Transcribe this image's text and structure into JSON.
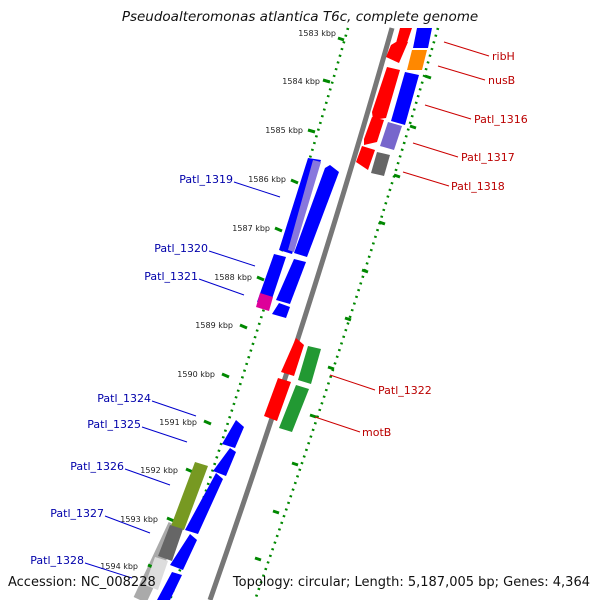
{
  "title": "Pseudoalteromonas atlantica T6c, complete genome",
  "accession_text": "Accession: NC_008228",
  "topology_text": "Topology: circular; Length: 5,187,005 bp; Genes: 4,364",
  "colors": {
    "forward_gene": "#0000ff",
    "reverse_gene": "#ff0000",
    "backbone": "#777777",
    "ticks_green": "#008800",
    "label_blue": "#0000aa",
    "label_red": "#bb0000",
    "orange": "#ff8800",
    "purple": "#7766cc",
    "olive": "#779922",
    "green_gene": "#229933",
    "magenta": "#dd0099",
    "gray_gene": "#666666"
  },
  "kbp_ticks": [
    "1583 kbp",
    "1584 kbp",
    "1585 kbp",
    "1586 kbp",
    "1587 kbp",
    "1588 kbp",
    "1589 kbp",
    "1590 kbp",
    "1591 kbp",
    "1592 kbp",
    "1593 kbp",
    "1594 kbp"
  ],
  "right_labels": [
    "ribH",
    "nusB",
    "Patl_1316",
    "Patl_1317",
    "Patl_1318",
    "Patl_1322",
    "motB"
  ],
  "left_labels": [
    "Patl_1319",
    "Patl_1320",
    "Patl_1321",
    "Patl_1324",
    "Patl_1325",
    "Patl_1326",
    "Patl_1327",
    "Patl_1328"
  ]
}
